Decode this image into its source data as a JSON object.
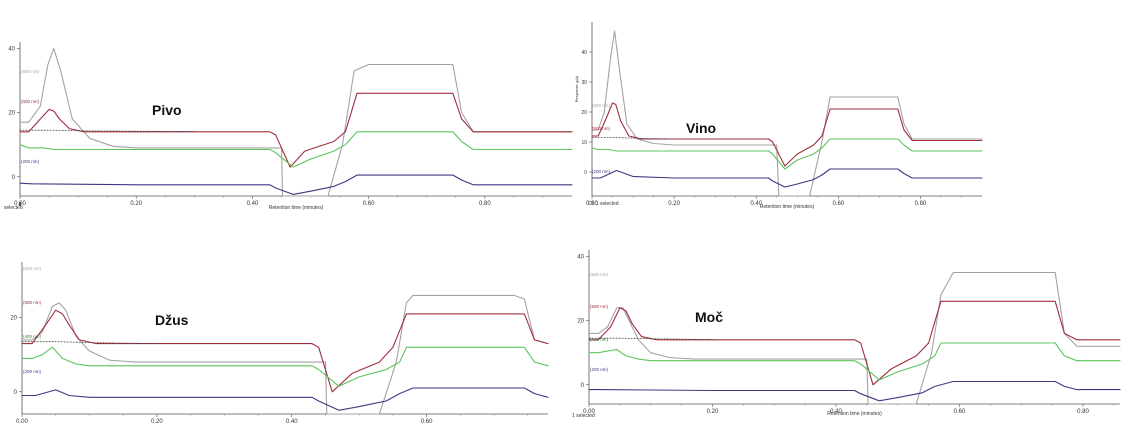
{
  "colors": {
    "gray": "#a3a3a3",
    "red": "#a02d3c",
    "green": "#5cc45c",
    "blue": "#3a3a84",
    "darkgreen": "#3c7a3c",
    "axis": "#555555",
    "dotted": "#444444"
  },
  "chart_data": [
    {
      "type": "line",
      "title": "Pivo",
      "xlabel": "Retention time (minutes)",
      "ylabel": "",
      "xlim": [
        0,
        0.95
      ],
      "ylim": [
        -6,
        42
      ],
      "x_ticks": [
        "0.00",
        "0.20",
        "0.40",
        "0.60",
        "0.80"
      ],
      "y_ticks": [
        "0",
        "20",
        "40"
      ],
      "channel_labels": [
        "(600 nm)",
        "(600 nm)",
        "(200 nm)"
      ],
      "footnote": "selected",
      "series": [
        {
          "name": "gray",
          "x": [
            0,
            0.015,
            0.035,
            0.048,
            0.058,
            0.07,
            0.09,
            0.12,
            0.16,
            0.2,
            0.3,
            0.44,
            0.45,
            0.452,
            0.5,
            0.52,
            0.53,
            0.555,
            0.575,
            0.6,
            0.73,
            0.745,
            0.76,
            0.78,
            0.95
          ],
          "y": [
            17,
            17,
            22,
            35,
            40,
            33,
            18,
            12,
            9.5,
            9,
            9,
            9,
            9,
            -6,
            -6,
            -6,
            -6,
            10,
            33,
            35,
            35,
            35,
            20,
            14,
            14
          ]
        },
        {
          "name": "red",
          "x": [
            0,
            0.015,
            0.035,
            0.05,
            0.058,
            0.068,
            0.085,
            0.11,
            0.15,
            0.2,
            0.43,
            0.44,
            0.465,
            0.49,
            0.54,
            0.56,
            0.58,
            0.6,
            0.73,
            0.745,
            0.76,
            0.78,
            0.95
          ],
          "y": [
            14,
            14,
            18,
            21,
            20.5,
            18,
            15,
            14,
            14,
            14,
            14,
            13,
            3,
            8,
            11,
            14,
            26,
            26,
            26,
            26,
            18,
            14,
            14
          ]
        },
        {
          "name": "green",
          "x": [
            0,
            0.015,
            0.04,
            0.06,
            0.1,
            0.2,
            0.43,
            0.44,
            0.47,
            0.5,
            0.54,
            0.56,
            0.58,
            0.6,
            0.73,
            0.745,
            0.76,
            0.78,
            0.95
          ],
          "y": [
            10,
            9,
            9,
            8.5,
            8.5,
            8.5,
            8.5,
            7.5,
            3,
            5.5,
            8,
            10,
            14,
            14,
            14,
            14,
            11,
            8.5,
            8.5
          ]
        },
        {
          "name": "blue",
          "x": [
            0,
            0.02,
            0.2,
            0.43,
            0.44,
            0.47,
            0.5,
            0.54,
            0.56,
            0.58,
            0.6,
            0.73,
            0.745,
            0.76,
            0.78,
            0.95
          ],
          "y": [
            -2,
            -2.2,
            -2.5,
            -2.5,
            -3.5,
            -5.5,
            -4.5,
            -3,
            -1.5,
            0.5,
            0.5,
            0.5,
            0.5,
            -1,
            -2.5,
            -2.5
          ]
        },
        {
          "name": "dotted",
          "x": [
            0,
            0.05,
            0.12,
            0.2,
            0.3
          ],
          "y": [
            14.5,
            14.5,
            14.3,
            14.2,
            14.1
          ]
        }
      ]
    },
    {
      "type": "line",
      "title": "Vino",
      "xlabel": "Retention time (minutes)",
      "ylabel": "Response (µA)",
      "xlim": [
        0,
        0.95
      ],
      "ylim": [
        -8,
        50
      ],
      "x_ticks": [
        "0.00",
        "0.20",
        "0.40",
        "0.60",
        "0.80"
      ],
      "y_ticks": [
        "0",
        "10",
        "20",
        "30",
        "40"
      ],
      "channel_labels": [
        "(600 nm)",
        "(500 nm)",
        "(200 nm)"
      ],
      "footnote": "Ch 1 selected",
      "series": [
        {
          "name": "gray",
          "x": [
            0,
            0.015,
            0.03,
            0.045,
            0.055,
            0.068,
            0.085,
            0.11,
            0.15,
            0.2,
            0.3,
            0.44,
            0.45,
            0.455,
            0.5,
            0.52,
            0.53,
            0.56,
            0.58,
            0.6,
            0.73,
            0.745,
            0.76,
            0.78,
            0.95
          ],
          "y": [
            14,
            14,
            20,
            38,
            47,
            33,
            16,
            11,
            9.5,
            9,
            9,
            9,
            9,
            -8,
            -8,
            -8,
            -8,
            10,
            25,
            25,
            25,
            25,
            16,
            11,
            11
          ]
        },
        {
          "name": "red",
          "x": [
            0,
            0.015,
            0.035,
            0.05,
            0.058,
            0.07,
            0.09,
            0.12,
            0.16,
            0.2,
            0.43,
            0.44,
            0.47,
            0.5,
            0.54,
            0.56,
            0.58,
            0.6,
            0.73,
            0.745,
            0.76,
            0.78,
            0.95
          ],
          "y": [
            12,
            12,
            18,
            23,
            22.5,
            17,
            12,
            11,
            11,
            11,
            11,
            10,
            2,
            6,
            9,
            12,
            21,
            21,
            21,
            21,
            14,
            10.5,
            10.5
          ]
        },
        {
          "name": "green",
          "x": [
            0,
            0.015,
            0.04,
            0.06,
            0.1,
            0.2,
            0.43,
            0.44,
            0.47,
            0.5,
            0.54,
            0.56,
            0.58,
            0.6,
            0.73,
            0.745,
            0.76,
            0.78,
            0.95
          ],
          "y": [
            8,
            7.5,
            7.5,
            7,
            7,
            7,
            7,
            6,
            1,
            4,
            6,
            8,
            11,
            11,
            11,
            11,
            9,
            7,
            7
          ]
        },
        {
          "name": "blue",
          "x": [
            0,
            0.02,
            0.06,
            0.1,
            0.2,
            0.43,
            0.44,
            0.47,
            0.5,
            0.54,
            0.56,
            0.58,
            0.6,
            0.73,
            0.745,
            0.76,
            0.78,
            0.95
          ],
          "y": [
            -2,
            -2,
            0.5,
            -1.5,
            -2,
            -2,
            -3,
            -5,
            -4,
            -2.5,
            -1,
            1,
            1,
            1,
            1,
            -0.5,
            -2,
            -2
          ]
        },
        {
          "name": "dotted",
          "x": [
            0,
            0.05,
            0.12,
            0.2
          ],
          "y": [
            11.5,
            11.5,
            11.2,
            11
          ]
        }
      ]
    },
    {
      "type": "line",
      "title": "Džus",
      "xlabel": "",
      "ylabel": "",
      "xlim": [
        0,
        0.78
      ],
      "ylim": [
        -6,
        35
      ],
      "x_ticks": [
        "0.00",
        "0.20",
        "0.40",
        "0.60"
      ],
      "y_ticks": [
        "0",
        "20"
      ],
      "channel_labels": [
        "(600 nm)",
        "(500 nm)",
        "(400 nm)",
        "(200 nm)"
      ],
      "footnote": "",
      "series": [
        {
          "name": "gray",
          "x": [
            0,
            0.015,
            0.03,
            0.045,
            0.055,
            0.065,
            0.08,
            0.1,
            0.13,
            0.17,
            0.3,
            0.44,
            0.45,
            0.452,
            0.5,
            0.52,
            0.53,
            0.555,
            0.57,
            0.58,
            0.73,
            0.745,
            0.76,
            0.78
          ],
          "y": [
            14,
            14,
            16,
            23,
            24,
            22,
            15,
            11,
            8.5,
            8,
            8,
            8,
            8,
            -6,
            -6,
            -6,
            -6,
            8,
            24,
            26,
            26,
            25,
            14,
            13
          ]
        },
        {
          "name": "red",
          "x": [
            0,
            0.015,
            0.035,
            0.05,
            0.06,
            0.07,
            0.085,
            0.11,
            0.15,
            0.2,
            0.43,
            0.44,
            0.46,
            0.49,
            0.53,
            0.55,
            0.57,
            0.58,
            0.73,
            0.745,
            0.76,
            0.78
          ],
          "y": [
            13,
            13,
            18,
            22,
            21,
            18,
            14,
            13,
            13,
            13,
            13,
            12,
            0,
            5,
            8,
            12,
            21,
            21,
            21,
            21,
            14,
            13
          ]
        },
        {
          "name": "green",
          "x": [
            0,
            0.015,
            0.03,
            0.045,
            0.06,
            0.08,
            0.1,
            0.2,
            0.43,
            0.44,
            0.47,
            0.5,
            0.54,
            0.56,
            0.57,
            0.58,
            0.73,
            0.745,
            0.76,
            0.78
          ],
          "y": [
            9,
            9,
            10,
            12,
            9,
            7.5,
            7,
            7,
            7,
            6,
            1.5,
            4,
            6,
            8,
            12,
            12,
            12,
            12,
            8,
            7
          ]
        },
        {
          "name": "blue",
          "x": [
            0,
            0.02,
            0.05,
            0.07,
            0.1,
            0.2,
            0.43,
            0.44,
            0.47,
            0.5,
            0.54,
            0.56,
            0.58,
            0.73,
            0.745,
            0.76,
            0.78
          ],
          "y": [
            -1,
            -1,
            0.5,
            -1,
            -1.5,
            -1.5,
            -1.5,
            -2.5,
            -5,
            -4,
            -2.5,
            -0.5,
            1,
            1,
            1,
            -0.5,
            -1.5
          ]
        },
        {
          "name": "dotted",
          "x": [
            0,
            0.05,
            0.12,
            0.2
          ],
          "y": [
            13.5,
            13.5,
            13.2,
            13
          ]
        }
      ]
    },
    {
      "type": "line",
      "title": "Moč",
      "xlabel": "Retention time (minutes)",
      "ylabel": "",
      "xlim": [
        0,
        0.86
      ],
      "ylim": [
        -6,
        42
      ],
      "x_ticks": [
        "0.00",
        "0.20",
        "0.40",
        "0.60",
        "0.80"
      ],
      "y_ticks": [
        "0",
        "20",
        "40"
      ],
      "channel_labels": [
        "(600 nm)",
        "(500 nm)",
        "(400 nm)",
        "(200 nm)"
      ],
      "footnote": "1 selected",
      "series": [
        {
          "name": "gray",
          "x": [
            0,
            0.015,
            0.03,
            0.045,
            0.055,
            0.065,
            0.08,
            0.1,
            0.13,
            0.17,
            0.3,
            0.44,
            0.45,
            0.452,
            0.5,
            0.52,
            0.53,
            0.555,
            0.57,
            0.59,
            0.74,
            0.755,
            0.77,
            0.79,
            0.86
          ],
          "y": [
            16,
            16,
            18,
            24,
            24,
            20,
            14,
            10,
            8.5,
            8,
            8,
            8,
            8,
            -6,
            -6,
            -6,
            -6,
            10,
            28,
            35,
            35,
            35,
            16,
            12,
            12
          ]
        },
        {
          "name": "red",
          "x": [
            0,
            0.015,
            0.035,
            0.05,
            0.06,
            0.07,
            0.085,
            0.11,
            0.15,
            0.2,
            0.43,
            0.44,
            0.46,
            0.49,
            0.53,
            0.55,
            0.57,
            0.59,
            0.74,
            0.755,
            0.77,
            0.79,
            0.86
          ],
          "y": [
            14,
            14,
            18,
            24,
            23,
            19,
            15,
            14,
            14,
            14,
            14,
            13,
            0,
            5,
            9,
            13,
            26,
            26,
            26,
            26,
            16,
            14,
            14
          ]
        },
        {
          "name": "green",
          "x": [
            0,
            0.015,
            0.03,
            0.045,
            0.06,
            0.08,
            0.1,
            0.2,
            0.43,
            0.44,
            0.47,
            0.5,
            0.54,
            0.56,
            0.57,
            0.59,
            0.74,
            0.755,
            0.77,
            0.79,
            0.86
          ],
          "y": [
            10,
            10,
            10.5,
            11,
            9,
            8,
            7.5,
            7.5,
            7.5,
            6.5,
            1.5,
            4,
            6.5,
            9,
            13,
            13,
            13,
            13,
            9,
            7.5,
            7.5
          ]
        },
        {
          "name": "blue",
          "x": [
            0,
            0.02,
            0.2,
            0.43,
            0.44,
            0.47,
            0.5,
            0.54,
            0.56,
            0.59,
            0.74,
            0.755,
            0.77,
            0.79,
            0.86
          ],
          "y": [
            -1.5,
            -1.5,
            -1.8,
            -1.8,
            -2.8,
            -5,
            -4,
            -2.5,
            -0.5,
            1,
            1,
            1,
            -0.5,
            -1.5,
            -1.5
          ]
        },
        {
          "name": "dotted",
          "x": [
            0,
            0.05,
            0.12,
            0.2
          ],
          "y": [
            14.5,
            14.5,
            14.3,
            14.1
          ]
        }
      ]
    }
  ]
}
